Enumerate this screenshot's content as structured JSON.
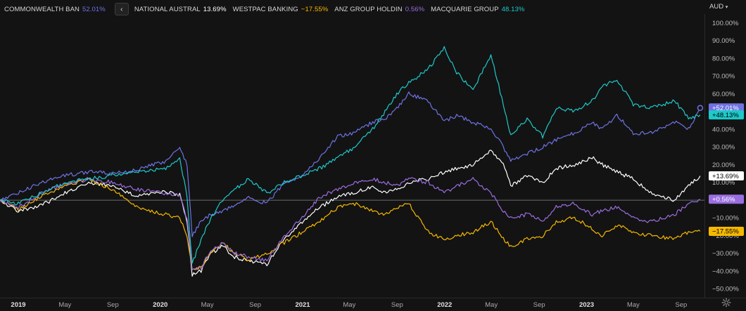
{
  "currency": {
    "label": "AUD",
    "icon": "chevron-down-icon"
  },
  "legend": {
    "collapse_icon": "chevron-left-icon",
    "items": [
      {
        "name": "COMMONWEALTH BAN",
        "value": "52.01%",
        "color": "#6f72e4"
      },
      {
        "name": "NATIONAL AUSTRAL",
        "value": "13.69%",
        "color": "#ffffff"
      },
      {
        "name": "WESTPAC BANKING",
        "value": "−17.55%",
        "color": "#f5b800"
      },
      {
        "name": "ANZ GROUP HOLDIN",
        "value": "0.56%",
        "color": "#9a6ee0"
      },
      {
        "name": "MACQUARIE GROUP",
        "value": "48.13%",
        "color": "#1ec9c9"
      }
    ]
  },
  "settings_icon": "gear-icon",
  "chart_data": {
    "type": "line",
    "y_unit": "% change",
    "ylim": [
      -55,
      105
    ],
    "y_ticks": [
      100,
      90,
      80,
      70,
      60,
      50,
      40,
      30,
      20,
      10,
      -10,
      -20,
      -30,
      -40,
      -50
    ],
    "y_tick_labels": [
      "100.00%",
      "90.00%",
      "80.00%",
      "70.00%",
      "60.00%",
      "50.00%",
      "40.00%",
      "30.00%",
      "20.00%",
      "10.00%",
      "−10.00%",
      "−20.00%",
      "−30.00%",
      "−40.00%",
      "−50.00%"
    ],
    "baseline": 0,
    "xlim": [
      "2018-11-15",
      "2023-10-31"
    ],
    "x_ticks": [
      {
        "date": "2019-01-01",
        "label": "2019",
        "major": true
      },
      {
        "date": "2019-05-01",
        "label": "May",
        "major": false
      },
      {
        "date": "2019-09-01",
        "label": "Sep",
        "major": false
      },
      {
        "date": "2020-01-01",
        "label": "2020",
        "major": true
      },
      {
        "date": "2020-05-01",
        "label": "May",
        "major": false
      },
      {
        "date": "2020-09-01",
        "label": "Sep",
        "major": false
      },
      {
        "date": "2021-01-01",
        "label": "2021",
        "major": true
      },
      {
        "date": "2021-05-01",
        "label": "May",
        "major": false
      },
      {
        "date": "2021-09-01",
        "label": "Sep",
        "major": false
      },
      {
        "date": "2022-01-01",
        "label": "2022",
        "major": true
      },
      {
        "date": "2022-05-01",
        "label": "May",
        "major": false
      },
      {
        "date": "2022-09-01",
        "label": "Sep",
        "major": false
      },
      {
        "date": "2023-01-01",
        "label": "2023",
        "major": true
      },
      {
        "date": "2023-05-01",
        "label": "May",
        "major": false
      },
      {
        "date": "2023-09-01",
        "label": "Sep",
        "major": false
      }
    ],
    "grid": false,
    "end_labels": [
      {
        "text": "+52.01%",
        "value": 52.01,
        "color": "#6f72e4",
        "text_color": "#ffffff"
      },
      {
        "text": "+48.13%",
        "value": 48.13,
        "color": "#1ec9c9",
        "text_color": "#000000"
      },
      {
        "text": "+13.69%",
        "value": 13.69,
        "color": "#ffffff",
        "text_color": "#000000"
      },
      {
        "text": "+0.56%",
        "value": 0.56,
        "color": "#9a6ee0",
        "text_color": "#ffffff"
      },
      {
        "text": "−17.55%",
        "value": -17.55,
        "color": "#f5b800",
        "text_color": "#000000"
      }
    ],
    "series": [
      {
        "name": "COMMONWEALTH BAN",
        "color": "#6f72e4",
        "dates": [
          "2018-11-15",
          "2019-01-01",
          "2019-03-01",
          "2019-05-01",
          "2019-07-01",
          "2019-09-01",
          "2019-11-01",
          "2020-01-15",
          "2020-02-20",
          "2020-03-10",
          "2020-03-23",
          "2020-04-15",
          "2020-05-10",
          "2020-06-10",
          "2020-07-10",
          "2020-08-15",
          "2020-10-01",
          "2020-11-15",
          "2020-12-31",
          "2021-02-15",
          "2021-04-01",
          "2021-05-15",
          "2021-06-30",
          "2021-08-01",
          "2021-08-31",
          "2021-10-01",
          "2021-11-20",
          "2021-12-31",
          "2022-02-01",
          "2022-03-15",
          "2022-04-30",
          "2022-06-01",
          "2022-06-20",
          "2022-08-01",
          "2022-09-10",
          "2022-10-15",
          "2022-12-01",
          "2023-01-15",
          "2023-02-10",
          "2023-03-20",
          "2023-05-01",
          "2023-06-15",
          "2023-08-15",
          "2023-09-20",
          "2023-10-20"
        ],
        "values": [
          0,
          4,
          10,
          14,
          16,
          15,
          17,
          22,
          30,
          20,
          -20,
          -12,
          -8,
          -6,
          -3,
          2,
          -2,
          10,
          14,
          24,
          36,
          38,
          44,
          46,
          52,
          60,
          56,
          44,
          48,
          44,
          40,
          30,
          22,
          26,
          30,
          34,
          38,
          44,
          40,
          48,
          38,
          38,
          44,
          40,
          52.01
        ]
      },
      {
        "name": "NATIONAL AUSTRAL",
        "color": "#ffffff",
        "dates": [
          "2018-11-15",
          "2019-01-01",
          "2019-03-01",
          "2019-05-01",
          "2019-07-01",
          "2019-09-01",
          "2019-11-01",
          "2020-01-15",
          "2020-02-20",
          "2020-03-10",
          "2020-03-23",
          "2020-04-15",
          "2020-05-10",
          "2020-06-10",
          "2020-07-10",
          "2020-08-15",
          "2020-10-01",
          "2020-11-15",
          "2020-12-31",
          "2021-02-15",
          "2021-04-01",
          "2021-05-15",
          "2021-06-30",
          "2021-08-01",
          "2021-08-31",
          "2021-10-01",
          "2021-11-20",
          "2021-12-31",
          "2022-02-01",
          "2022-03-15",
          "2022-04-30",
          "2022-06-01",
          "2022-06-20",
          "2022-08-01",
          "2022-09-10",
          "2022-10-15",
          "2022-12-01",
          "2023-01-15",
          "2023-02-10",
          "2023-03-20",
          "2023-05-01",
          "2023-06-15",
          "2023-08-15",
          "2023-09-20",
          "2023-10-20"
        ],
        "values": [
          0,
          -6,
          -3,
          4,
          10,
          8,
          2,
          5,
          3,
          -12,
          -42,
          -40,
          -30,
          -26,
          -32,
          -34,
          -36,
          -22,
          -12,
          -4,
          2,
          4,
          8,
          4,
          6,
          10,
          12,
          16,
          18,
          20,
          28,
          20,
          8,
          14,
          10,
          18,
          20,
          24,
          20,
          16,
          12,
          4,
          0,
          8,
          13.69
        ]
      },
      {
        "name": "WESTPAC BANKING",
        "color": "#f5b800",
        "dates": [
          "2018-11-15",
          "2019-01-01",
          "2019-03-01",
          "2019-05-01",
          "2019-07-01",
          "2019-09-01",
          "2019-11-01",
          "2020-01-15",
          "2020-02-20",
          "2020-03-10",
          "2020-03-23",
          "2020-04-15",
          "2020-05-10",
          "2020-06-10",
          "2020-07-10",
          "2020-08-15",
          "2020-10-01",
          "2020-11-15",
          "2020-12-31",
          "2021-02-15",
          "2021-04-01",
          "2021-05-15",
          "2021-06-30",
          "2021-08-01",
          "2021-08-31",
          "2021-10-01",
          "2021-11-20",
          "2021-12-31",
          "2022-02-01",
          "2022-03-15",
          "2022-04-30",
          "2022-06-01",
          "2022-06-20",
          "2022-08-01",
          "2022-09-10",
          "2022-10-15",
          "2022-12-01",
          "2023-01-15",
          "2023-02-10",
          "2023-03-20",
          "2023-05-01",
          "2023-06-15",
          "2023-08-15",
          "2023-09-20",
          "2023-10-20"
        ],
        "values": [
          0,
          -5,
          2,
          8,
          12,
          6,
          -4,
          -8,
          -10,
          -20,
          -40,
          -38,
          -30,
          -24,
          -30,
          -34,
          -30,
          -24,
          -18,
          -12,
          -4,
          -2,
          -6,
          -8,
          -4,
          -2,
          -18,
          -22,
          -20,
          -18,
          -12,
          -22,
          -26,
          -22,
          -20,
          -12,
          -10,
          -16,
          -20,
          -14,
          -18,
          -20,
          -22,
          -18,
          -17.55
        ]
      },
      {
        "name": "ANZ GROUP HOLDIN",
        "color": "#9a6ee0",
        "dates": [
          "2018-11-15",
          "2019-01-01",
          "2019-03-01",
          "2019-05-01",
          "2019-07-01",
          "2019-09-01",
          "2019-11-01",
          "2020-01-15",
          "2020-02-20",
          "2020-03-10",
          "2020-03-23",
          "2020-04-15",
          "2020-05-10",
          "2020-06-10",
          "2020-07-10",
          "2020-08-15",
          "2020-10-01",
          "2020-11-15",
          "2020-12-31",
          "2021-02-15",
          "2021-04-01",
          "2021-05-15",
          "2021-06-30",
          "2021-08-01",
          "2021-08-31",
          "2021-10-01",
          "2021-11-20",
          "2021-12-31",
          "2022-02-01",
          "2022-03-15",
          "2022-04-30",
          "2022-06-01",
          "2022-06-20",
          "2022-08-01",
          "2022-09-10",
          "2022-10-15",
          "2022-12-01",
          "2023-01-15",
          "2023-02-10",
          "2023-03-20",
          "2023-05-01",
          "2023-06-15",
          "2023-08-15",
          "2023-09-20",
          "2023-10-20"
        ],
        "values": [
          0,
          -4,
          4,
          9,
          12,
          10,
          6,
          4,
          2,
          -10,
          -40,
          -38,
          -28,
          -24,
          -30,
          -32,
          -34,
          -20,
          -10,
          2,
          6,
          10,
          12,
          10,
          8,
          12,
          10,
          4,
          8,
          12,
          4,
          -6,
          -10,
          -8,
          -12,
          -4,
          -2,
          -8,
          -6,
          -4,
          -10,
          -12,
          -8,
          -2,
          0.56
        ]
      },
      {
        "name": "MACQUARIE GROUP",
        "color": "#1ec9c9",
        "dates": [
          "2018-11-15",
          "2019-01-01",
          "2019-03-01",
          "2019-05-01",
          "2019-07-01",
          "2019-09-01",
          "2019-11-01",
          "2020-01-15",
          "2020-02-20",
          "2020-03-10",
          "2020-03-23",
          "2020-04-15",
          "2020-05-10",
          "2020-06-10",
          "2020-07-10",
          "2020-08-15",
          "2020-10-01",
          "2020-11-15",
          "2020-12-31",
          "2021-02-15",
          "2021-04-01",
          "2021-05-15",
          "2021-06-30",
          "2021-08-01",
          "2021-08-31",
          "2021-10-01",
          "2021-11-20",
          "2021-12-31",
          "2022-02-01",
          "2022-03-15",
          "2022-04-30",
          "2022-06-01",
          "2022-06-20",
          "2022-08-01",
          "2022-09-10",
          "2022-10-15",
          "2022-12-01",
          "2023-01-15",
          "2023-02-10",
          "2023-03-20",
          "2023-05-01",
          "2023-06-15",
          "2023-08-15",
          "2023-09-20",
          "2023-10-20"
        ],
        "values": [
          0,
          -2,
          4,
          10,
          12,
          14,
          16,
          18,
          24,
          2,
          -36,
          -22,
          -10,
          0,
          6,
          12,
          4,
          10,
          14,
          18,
          24,
          30,
          40,
          50,
          60,
          66,
          74,
          86,
          72,
          62,
          82,
          54,
          36,
          46,
          36,
          52,
          50,
          56,
          64,
          68,
          54,
          52,
          56,
          46,
          48.13
        ]
      }
    ]
  }
}
